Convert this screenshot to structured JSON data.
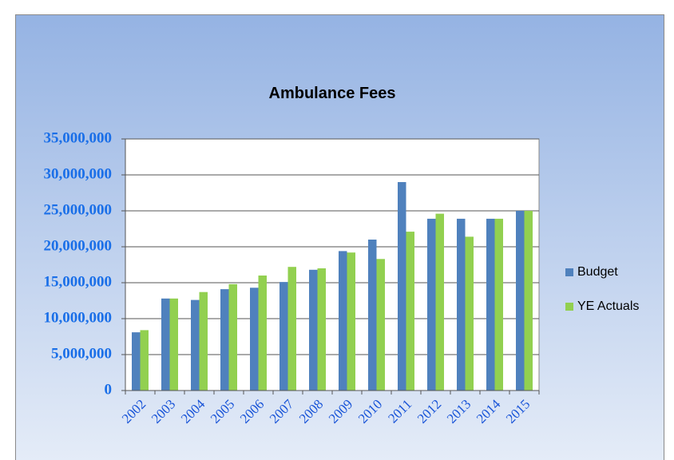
{
  "chart_data": {
    "type": "bar",
    "title": "Ambulance Fees",
    "categories": [
      "2002",
      "2003",
      "2004",
      "2005",
      "2006",
      "2007",
      "2008",
      "2009",
      "2010",
      "2011",
      "2012",
      "2013",
      "2014",
      "2015"
    ],
    "series": [
      {
        "name": "Budget",
        "color": "#4f81bd",
        "values": [
          8100000,
          12800000,
          12600000,
          14100000,
          14300000,
          15100000,
          16800000,
          19400000,
          21000000,
          29000000,
          23900000,
          23900000,
          23900000,
          25000000
        ]
      },
      {
        "name": "YE Actuals",
        "color": "#92d050",
        "values": [
          8400000,
          12800000,
          13700000,
          14800000,
          16000000,
          17200000,
          17000000,
          19200000,
          18300000,
          22100000,
          24600000,
          21400000,
          23900000,
          25000000
        ]
      }
    ],
    "ylim": [
      0,
      35000000
    ],
    "yticks": [
      0,
      {
        "value": 5000000,
        "label": "5,000,000"
      },
      {
        "value": 10000000,
        "label": "10,000,000"
      },
      {
        "value": 15000000,
        "label": "15,000,000"
      },
      {
        "value": 20000000,
        "label": "20,000,000"
      },
      {
        "value": 25000000,
        "label": "25,000,000"
      },
      {
        "value": 30000000,
        "label": "30,000,000"
      },
      {
        "value": 35000000,
        "label": "35,000,000"
      }
    ],
    "grid": true,
    "legend": "right"
  }
}
